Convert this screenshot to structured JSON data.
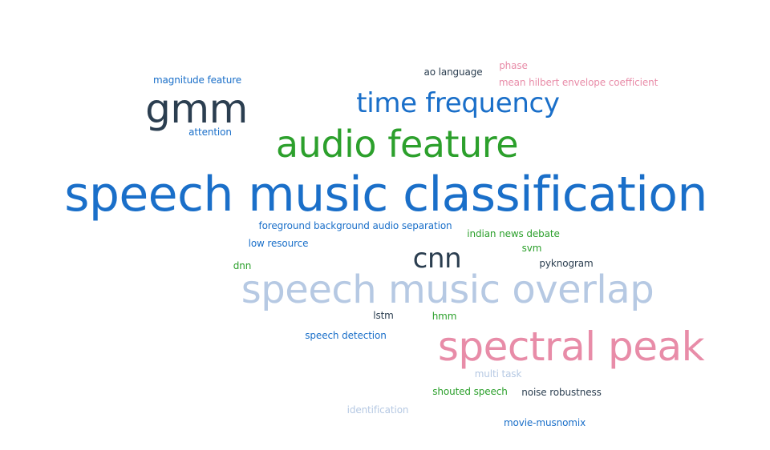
{
  "colors": {
    "blue": "#1a6fc9",
    "darkblue": "#2b3e50",
    "green": "#2ca02c",
    "pink": "#e88ca8",
    "lightblue": "#b6c9e3"
  },
  "words": [
    {
      "text": "speech music classification",
      "color": "#1a6fc9"
    },
    {
      "text": "speech music overlap",
      "color": "#b6c9e3"
    },
    {
      "text": "spectral peak",
      "color": "#e88ca8"
    },
    {
      "text": "audio feature",
      "color": "#2ca02c"
    },
    {
      "text": "time frequency",
      "color": "#1a6fc9"
    },
    {
      "text": "gmm",
      "color": "#2b3e50"
    },
    {
      "text": "cnn",
      "color": "#2b3e50"
    },
    {
      "text": "magnitude feature",
      "color": "#1a6fc9"
    },
    {
      "text": "attention",
      "color": "#1a6fc9"
    },
    {
      "text": "ao language",
      "color": "#2b3e50"
    },
    {
      "text": "phase",
      "color": "#e88ca8"
    },
    {
      "text": "mean hilbert envelope coefficient",
      "color": "#e88ca8"
    },
    {
      "text": "foreground background audio separation",
      "color": "#1a6fc9"
    },
    {
      "text": "low resource",
      "color": "#1a6fc9"
    },
    {
      "text": "indian news debate",
      "color": "#2ca02c"
    },
    {
      "text": "svm",
      "color": "#2ca02c"
    },
    {
      "text": "pyknogram",
      "color": "#2b3e50"
    },
    {
      "text": "dnn",
      "color": "#2ca02c"
    },
    {
      "text": "lstm",
      "color": "#2b3e50"
    },
    {
      "text": "hmm",
      "color": "#2ca02c"
    },
    {
      "text": "speech detection",
      "color": "#1a6fc9"
    },
    {
      "text": "multi task",
      "color": "#b6c9e3"
    },
    {
      "text": "shouted speech",
      "color": "#2ca02c"
    },
    {
      "text": "noise robustness",
      "color": "#2b3e50"
    },
    {
      "text": "identification",
      "color": "#b6c9e3"
    },
    {
      "text": "movie-musnomix",
      "color": "#1a6fc9"
    }
  ]
}
